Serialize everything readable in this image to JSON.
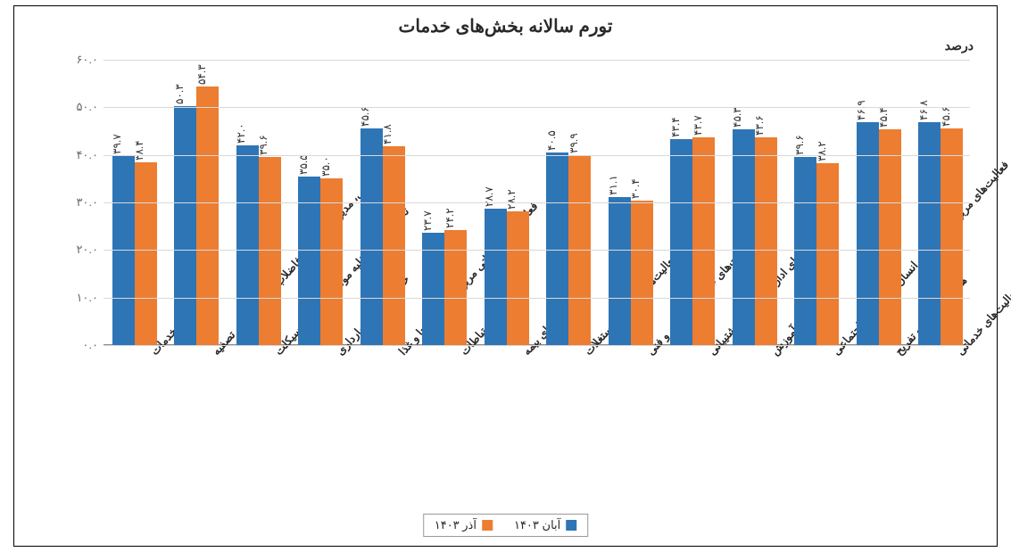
{
  "chart": {
    "type": "bar",
    "title": "تورم سالانه بخش‌های خدمات",
    "y_axis_label": "درصد",
    "background_color": "#ffffff",
    "grid_color": "#d9d9d9",
    "border_color": "#000000",
    "title_fontsize": 20,
    "label_fontsize": 12,
    "xlabel_fontsize": 13,
    "ylim": [
      0,
      60
    ],
    "ytick_step": 10,
    "yticks": [
      "۰.۰",
      "۱۰.۰",
      "۲۰.۰",
      "۳۰.۰",
      "۴۰.۰",
      "۵۰.۰",
      "۶۰.۰"
    ],
    "bar_width": 0.36,
    "series": [
      {
        "name": "آبان ۱۴۰۳",
        "color": "#2e75b6"
      },
      {
        "name": "آذر ۱۴۰۳",
        "color": "#ed7d31"
      }
    ],
    "categories": [
      {
        "label": "خدمات",
        "v1": 39.7,
        "v2": 38.4,
        "l1": "۳۹.۷",
        "l2": "۳۸.۴"
      },
      {
        "label": "آبرسانی، مدیریت پسماند، فاضلاب و فعالیت‌های تصفیه",
        "v1": 50.3,
        "v2": 54.3,
        "l1": "۵۰.۳",
        "l2": "۵۴.۳"
      },
      {
        "label": "تعمیر وسایل نقلیه موتوری و موتور سیکلت",
        "v1": 42.0,
        "v2": 39.6,
        "l1": "۴۲.۰",
        "l2": "۳۹.۶"
      },
      {
        "label": "حمل و نقل و انبارداری",
        "v1": 35.5,
        "v2": 35.0,
        "l1": "۳۵.۵",
        "l2": "۳۵.۰"
      },
      {
        "label": "فعالیت‌های خدماتی مربوط به تامین جا و غذا",
        "v1": 45.6,
        "v2": 41.8,
        "l1": "۴۵.۶",
        "l2": "۴۱.۸"
      },
      {
        "label": "اطلاعات و ارتباطات",
        "v1": 23.7,
        "v2": 24.2,
        "l1": "۲۳.۷",
        "l2": "۲۴.۲"
      },
      {
        "label": "فعالیت‌های بیمه",
        "v1": 28.7,
        "v2": 28.2,
        "l1": "۲۸.۷",
        "l2": "۲۸.۲"
      },
      {
        "label": "فعالیت‌های املاک و مستغلات",
        "v1": 40.5,
        "v2": 39.9,
        "l1": "۴۰.۵",
        "l2": "۳۹.۹"
      },
      {
        "label": "فعالیت‌های حرفه‌ای، علمی و فنی",
        "v1": 31.1,
        "v2": 30.4,
        "l1": "۳۱.۱",
        "l2": "۳۰.۴"
      },
      {
        "label": "فعالیت‌های اداری و خدمات پشتیبانی",
        "v1": 43.4,
        "v2": 43.7,
        "l1": "۴۳.۴",
        "l2": "۴۳.۷"
      },
      {
        "label": "آموزش",
        "v1": 45.3,
        "v2": 43.6,
        "l1": "۴۵.۳",
        "l2": "۴۳.۶"
      },
      {
        "label": "فعالیت‌های مربوط به سلامت انسان و مددکاری اجتماعی",
        "v1": 39.6,
        "v2": 38.2,
        "l1": "۳۹.۶",
        "l2": "۳۸.۲"
      },
      {
        "label": "هنر، سرگرمی و تفریح",
        "v1": 46.9,
        "v2": 45.4,
        "l1": "۴۶.۹",
        "l2": "۴۵.۴"
      },
      {
        "label": "سایر فعالیت‌های خدماتی",
        "v1": 46.8,
        "v2": 45.6,
        "l1": "۴۶.۸",
        "l2": "۴۵.۶"
      }
    ],
    "legend_position": "bottom-center"
  }
}
